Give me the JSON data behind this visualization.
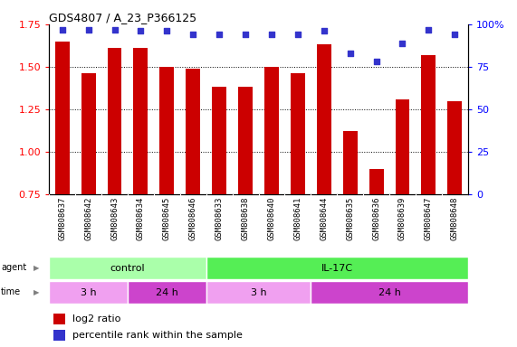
{
  "title": "GDS4807 / A_23_P366125",
  "samples": [
    "GSM808637",
    "GSM808642",
    "GSM808643",
    "GSM808634",
    "GSM808645",
    "GSM808646",
    "GSM808633",
    "GSM808638",
    "GSM808640",
    "GSM808641",
    "GSM808644",
    "GSM808635",
    "GSM808636",
    "GSM808639",
    "GSM808647",
    "GSM808648"
  ],
  "log2_ratio": [
    1.65,
    1.46,
    1.61,
    1.61,
    1.5,
    1.49,
    1.38,
    1.38,
    1.5,
    1.46,
    1.63,
    1.12,
    0.9,
    1.31,
    1.57,
    1.3
  ],
  "percentile": [
    97,
    97,
    97,
    96,
    96,
    94,
    94,
    94,
    94,
    94,
    96,
    83,
    78,
    89,
    97,
    94
  ],
  "bar_color": "#cc0000",
  "dot_color": "#3333cc",
  "ylim_left": [
    0.75,
    1.75
  ],
  "ylim_right": [
    0,
    100
  ],
  "yticks_left": [
    0.75,
    1.0,
    1.25,
    1.5,
    1.75
  ],
  "yticks_right": [
    0,
    25,
    50,
    75,
    100
  ],
  "dotted_lines": [
    1.0,
    1.25,
    1.5
  ],
  "agent_groups": [
    {
      "label": "control",
      "start": 0,
      "end": 6,
      "color": "#aaffaa"
    },
    {
      "label": "IL-17C",
      "start": 6,
      "end": 16,
      "color": "#55ee55"
    }
  ],
  "time_groups": [
    {
      "label": "3 h",
      "start": 0,
      "end": 3,
      "color": "#f0a0f0"
    },
    {
      "label": "24 h",
      "start": 3,
      "end": 6,
      "color": "#cc44cc"
    },
    {
      "label": "3 h",
      "start": 6,
      "end": 10,
      "color": "#f0a0f0"
    },
    {
      "label": "24 h",
      "start": 10,
      "end": 16,
      "color": "#cc44cc"
    }
  ],
  "legend_bar_label": "log2 ratio",
  "legend_dot_label": "percentile rank within the sample",
  "baseline": 0.75,
  "ylabel_left_color": "red",
  "ylabel_right_color": "blue"
}
